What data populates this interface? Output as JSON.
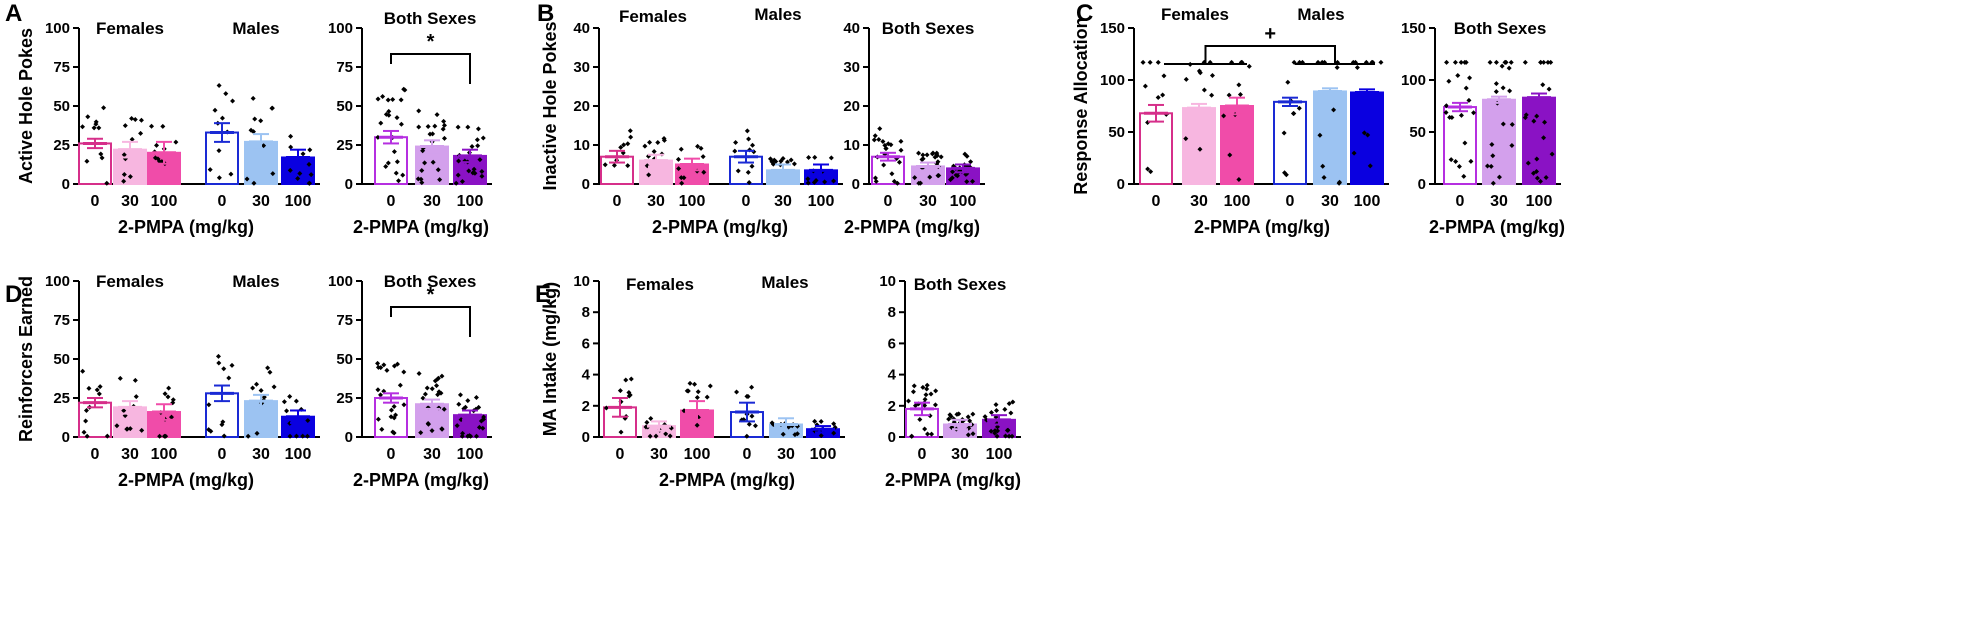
{
  "colors": {
    "female_0": "#d62f8a",
    "female_30": "#f7b6e0",
    "female_100": "#f04ca9",
    "male_0": "#1a2ad4",
    "male_30": "#9cc3f2",
    "male_100": "#0a00e0",
    "both_0": "#b52fe0",
    "both_30": "#d3a0ec",
    "both_100": "#8a12c4",
    "axis": "#000000"
  },
  "chart_data": [
    {
      "panel": "A",
      "type": "bar",
      "ylabel": "Active Hole Pokes",
      "xlabel": "2-PMPA  (mg/kg)",
      "ylim": [
        0,
        100
      ],
      "yticks": [
        "0",
        "25",
        "50",
        "75",
        "100"
      ],
      "groups": [
        "Females",
        "Males"
      ],
      "categories": [
        "0",
        "30",
        "100"
      ],
      "series": [
        {
          "name": "Females",
          "values": [
            26,
            22,
            20
          ],
          "sem": [
            3,
            5,
            7
          ]
        },
        {
          "name": "Males",
          "values": [
            33,
            27,
            17
          ],
          "sem": [
            6,
            5,
            5
          ]
        }
      ],
      "annotation": ""
    },
    {
      "panel": "A",
      "type": "bar",
      "ylabel": "",
      "xlabel": "2-PMPA  (mg/kg)",
      "ylim": [
        0,
        100
      ],
      "yticks": [
        "0",
        "25",
        "50",
        "75",
        "100"
      ],
      "groups": [
        "Both Sexes"
      ],
      "categories": [
        "0",
        "30",
        "100"
      ],
      "series": [
        {
          "name": "Both Sexes",
          "values": [
            30,
            24,
            18
          ],
          "sem": [
            4,
            4,
            4
          ]
        }
      ],
      "annotation": "*"
    },
    {
      "panel": "B",
      "type": "bar",
      "ylabel": "Inactive Hole Pokes",
      "xlabel": "2-PMPA  (mg/kg)",
      "ylim": [
        0,
        40
      ],
      "yticks": [
        "0",
        "10",
        "20",
        "30",
        "40"
      ],
      "groups": [
        "Females",
        "Males"
      ],
      "categories": [
        "0",
        "30",
        "100"
      ],
      "series": [
        {
          "name": "Females",
          "values": [
            7,
            6,
            5
          ],
          "sem": [
            1.5,
            1.5,
            1.5
          ]
        },
        {
          "name": "Males",
          "values": [
            7,
            3.5,
            3.5
          ],
          "sem": [
            1.5,
            1.5,
            1.5
          ]
        }
      ],
      "annotation": ""
    },
    {
      "panel": "B",
      "type": "bar",
      "ylabel": "",
      "xlabel": "2-PMPA  (mg/kg)",
      "ylim": [
        0,
        40
      ],
      "yticks": [
        "0",
        "10",
        "20",
        "30",
        "40"
      ],
      "groups": [
        "Both Sexes"
      ],
      "categories": [
        "0",
        "30",
        "100"
      ],
      "series": [
        {
          "name": "Both Sexes",
          "values": [
            7,
            4.5,
            4
          ],
          "sem": [
            1,
            1,
            1
          ]
        }
      ],
      "annotation": ""
    },
    {
      "panel": "C",
      "type": "bar",
      "ylabel": "Response Allocation",
      "xlabel": "2-PMPA  (mg/kg)",
      "ylim": [
        0,
        150
      ],
      "yticks": [
        "0",
        "50",
        "100",
        "150"
      ],
      "groups": [
        "Females",
        "Males"
      ],
      "categories": [
        "0",
        "30",
        "100"
      ],
      "series": [
        {
          "name": "Females",
          "values": [
            68,
            73,
            75
          ],
          "sem": [
            8,
            4,
            8
          ]
        },
        {
          "name": "Males",
          "values": [
            79,
            89,
            88
          ],
          "sem": [
            4,
            3,
            3
          ]
        }
      ],
      "annotation": "+"
    },
    {
      "panel": "C",
      "type": "bar",
      "ylabel": "",
      "xlabel": "2-PMPA  (mg/kg)",
      "ylim": [
        0,
        150
      ],
      "yticks": [
        "0",
        "50",
        "100",
        "150"
      ],
      "groups": [
        "Both Sexes"
      ],
      "categories": [
        "0",
        "30",
        "100"
      ],
      "series": [
        {
          "name": "Both Sexes",
          "values": [
            74,
            81,
            83
          ],
          "sem": [
            4,
            3,
            4
          ]
        }
      ],
      "annotation": ""
    },
    {
      "panel": "D",
      "type": "bar",
      "ylabel": "Reinforcers Earned",
      "xlabel": "2-PMPA  (mg/kg)",
      "ylim": [
        0,
        100
      ],
      "yticks": [
        "0",
        "25",
        "50",
        "75",
        "100"
      ],
      "groups": [
        "Females",
        "Males"
      ],
      "categories": [
        "0",
        "30",
        "100"
      ],
      "series": [
        {
          "name": "Females",
          "values": [
            22,
            19,
            16
          ],
          "sem": [
            3,
            4,
            5
          ]
        },
        {
          "name": "Males",
          "values": [
            28,
            23,
            13
          ],
          "sem": [
            5,
            4,
            4
          ]
        }
      ],
      "annotation": ""
    },
    {
      "panel": "D",
      "type": "bar",
      "ylabel": "",
      "xlabel": "2-PMPA  (mg/kg)",
      "ylim": [
        0,
        100
      ],
      "yticks": [
        "0",
        "25",
        "50",
        "75",
        "100"
      ],
      "groups": [
        "Both Sexes"
      ],
      "categories": [
        "0",
        "30",
        "100"
      ],
      "series": [
        {
          "name": "Both Sexes",
          "values": [
            25,
            21,
            14
          ],
          "sem": [
            3,
            3,
            3
          ]
        }
      ],
      "annotation": "*"
    },
    {
      "panel": "E",
      "type": "bar",
      "ylabel": "MA Intake (mg/kg)",
      "xlabel": "2-PMPA  (mg/kg)",
      "ylim": [
        0,
        10
      ],
      "yticks": [
        "0",
        "2",
        "4",
        "6",
        "8",
        "10"
      ],
      "groups": [
        "Females",
        "Males"
      ],
      "categories": [
        "0",
        "30",
        "100"
      ],
      "series": [
        {
          "name": "Females",
          "values": [
            1.9,
            0.7,
            1.7
          ],
          "sem": [
            0.6,
            0.3,
            0.6
          ]
        },
        {
          "name": "Males",
          "values": [
            1.6,
            0.8,
            0.5
          ],
          "sem": [
            0.6,
            0.4,
            0.2
          ]
        }
      ],
      "annotation": ""
    },
    {
      "panel": "E",
      "type": "bar",
      "ylabel": "",
      "xlabel": "2-PMPA  (mg/kg)",
      "ylim": [
        0,
        10
      ],
      "yticks": [
        "0",
        "2",
        "4",
        "6",
        "8",
        "10"
      ],
      "groups": [
        "Both Sexes"
      ],
      "categories": [
        "0",
        "30",
        "100"
      ],
      "series": [
        {
          "name": "Both Sexes",
          "values": [
            1.8,
            0.8,
            1.1
          ],
          "sem": [
            0.4,
            0.3,
            0.3
          ]
        }
      ],
      "annotation": ""
    }
  ]
}
